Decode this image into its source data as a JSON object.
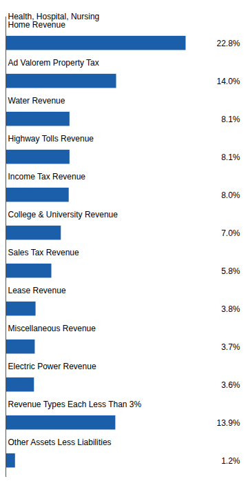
{
  "chart_data": {
    "type": "bar",
    "orientation": "horizontal",
    "categories": [
      "Health, Hospital, Nursing\nHome Revenue",
      "Ad Valorem Property Tax",
      "Water Revenue",
      "Highway Tolls Revenue",
      "Income Tax Revenue",
      "College & University Revenue",
      "Sales Tax Revenue",
      "Lease Revenue",
      "Miscellaneous Revenue",
      "Electric Power Revenue",
      "Revenue Types Each Less Than 3%",
      "Other Assets Less Liabilities"
    ],
    "values": [
      22.8,
      14.0,
      8.1,
      8.1,
      8.0,
      7.0,
      5.8,
      3.8,
      3.7,
      3.6,
      13.9,
      1.2
    ],
    "value_labels": [
      "22.8%",
      "14.0%",
      "8.1%",
      "8.1%",
      "8.0%",
      "7.0%",
      "5.8%",
      "3.8%",
      "3.7%",
      "3.6%",
      "13.9%",
      "1.2%"
    ],
    "color": "#1b5faa",
    "xlim": [
      0,
      30
    ],
    "data_labels": true,
    "tick_labels": false,
    "grid": false
  }
}
